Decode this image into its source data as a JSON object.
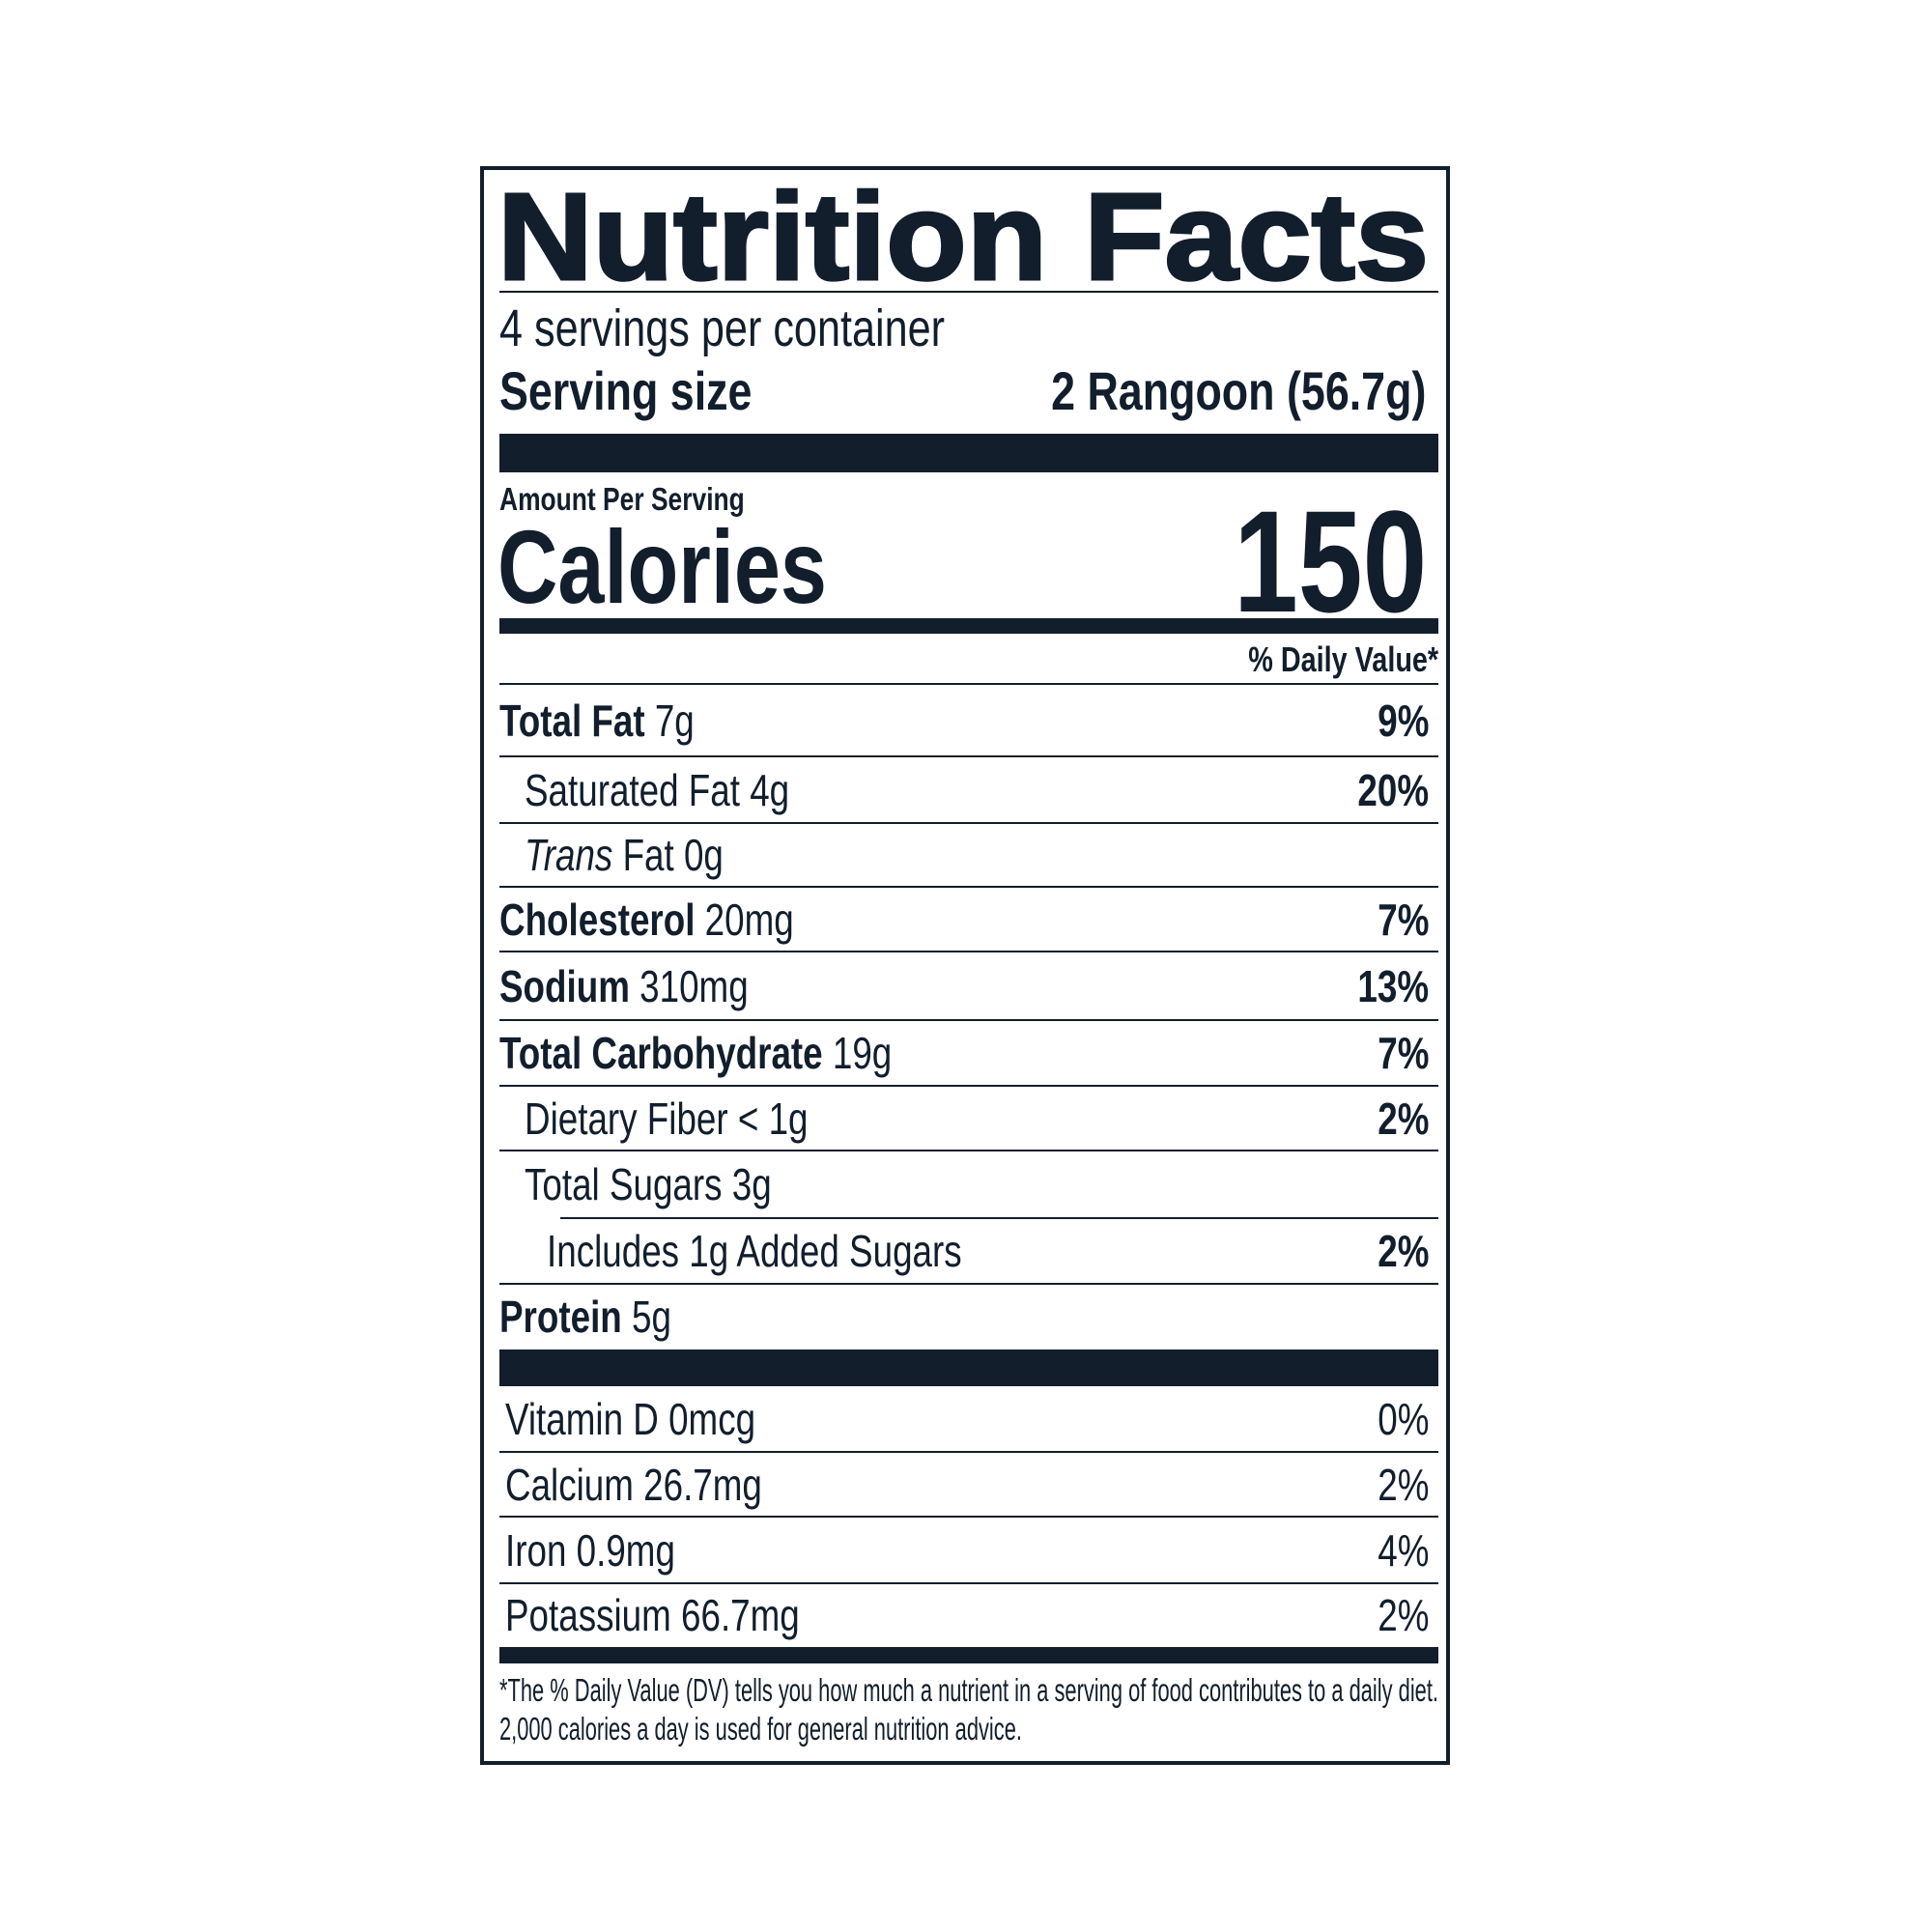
{
  "title": "Nutrition Facts",
  "servings_per_container": "4 servings per container",
  "serving_size": {
    "label": "Serving size",
    "value": "2 Rangoon (56.7g)"
  },
  "amount_per_serving": "Amount Per Serving",
  "calories": {
    "label": "Calories",
    "value": "150"
  },
  "daily_value_header": "% Daily Value*",
  "nutrients": [
    {
      "label": "Total Fat",
      "amount": "7g",
      "dv": "9%",
      "bold": true,
      "indent": 0
    },
    {
      "label": "Saturated Fat",
      "amount": "4g",
      "dv": "20%",
      "bold": false,
      "indent": 1
    },
    {
      "label": "Trans",
      "label_suffix": "Fat",
      "amount": "0g",
      "dv": "",
      "bold": false,
      "indent": 1,
      "italic_label": true
    },
    {
      "label": "Cholesterol",
      "amount": "20mg",
      "dv": "7%",
      "bold": true,
      "indent": 0
    },
    {
      "label": "Sodium",
      "amount": "310mg",
      "dv": "13%",
      "bold": true,
      "indent": 0
    },
    {
      "label": "Total Carbohydrate",
      "amount": "19g",
      "dv": "7%",
      "bold": true,
      "indent": 0
    },
    {
      "label": "Dietary Fiber",
      "amount": "< 1g",
      "dv": "2%",
      "bold": false,
      "indent": 1
    },
    {
      "label": "Total Sugars",
      "amount": "3g",
      "dv": "",
      "bold": false,
      "indent": 1
    },
    {
      "label": "Includes 1g Added Sugars",
      "amount": "",
      "dv": "2%",
      "bold": false,
      "indent": 2
    },
    {
      "label": "Protein",
      "amount": "5g",
      "dv": "",
      "bold": true,
      "indent": 0
    }
  ],
  "vitamins": [
    {
      "label": "Vitamin D 0mcg",
      "dv": "0%"
    },
    {
      "label": "Calcium 26.7mg",
      "dv": "2%"
    },
    {
      "label": "Iron 0.9mg",
      "dv": "4%"
    },
    {
      "label": "Potassium 66.7mg",
      "dv": "2%"
    }
  ],
  "footnote": {
    "line1": "*The % Daily Value (DV) tells you how much a nutrient in a serving of food contributes to a daily diet.",
    "line2": "2,000 calories a day is used for general nutrition advice."
  },
  "colors": {
    "ink": "#121e2c",
    "background": "#ffffff"
  }
}
